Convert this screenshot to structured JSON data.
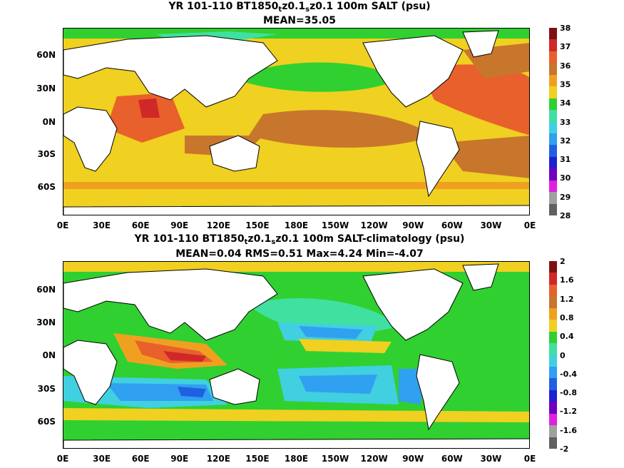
{
  "panel1": {
    "title_a": "YR 101-110 BT1850",
    "title_sub1": "t",
    "title_b": "z0.1",
    "title_sub2": "s",
    "title_c": "z0.1 100m SALT (psu)",
    "stats": "MEAN=35.05",
    "colorbar_labels": [
      "38",
      "37",
      "36",
      "35",
      "34",
      "33",
      "32",
      "31",
      "30",
      "29",
      "28"
    ],
    "colorbar_colors": [
      "#7f1010",
      "#d02828",
      "#e8602c",
      "#c8762c",
      "#f0a020",
      "#f0d020",
      "#30d030",
      "#40e0a0",
      "#40d0e0",
      "#30a0f0",
      "#2060e0",
      "#2020d0",
      "#7000c0",
      "#e020e0",
      "#a0a0a0",
      "#606060"
    ]
  },
  "panel2": {
    "title_a": "YR 101-110 BT1850",
    "title_sub1": "t",
    "title_b": "z0.1",
    "title_sub2": "s",
    "title_c": "z0.1 100m SALT-climatology (psu)",
    "stats": "MEAN=0.04   RMS=0.51   Max=4.24   Min=-4.07",
    "colorbar_labels": [
      "2",
      "1.6",
      "1.2",
      "0.8",
      "0.4",
      "0",
      "-0.4",
      "-0.8",
      "-1.2",
      "-1.6",
      "-2"
    ],
    "colorbar_colors": [
      "#7f1010",
      "#d02828",
      "#e8602c",
      "#c8762c",
      "#f0a020",
      "#f0d020",
      "#30d030",
      "#40e0a0",
      "#40d0e0",
      "#30a0f0",
      "#2060e0",
      "#2020d0",
      "#7000c0",
      "#e020e0",
      "#a0a0a0",
      "#606060"
    ]
  },
  "lat_labels": [
    "60N",
    "30N",
    "0N",
    "30S",
    "60S"
  ],
  "lon_labels": [
    "0E",
    "30E",
    "60E",
    "90E",
    "120E",
    "150E",
    "180E",
    "150W",
    "120W",
    "90W",
    "60W",
    "30W",
    "0E"
  ]
}
